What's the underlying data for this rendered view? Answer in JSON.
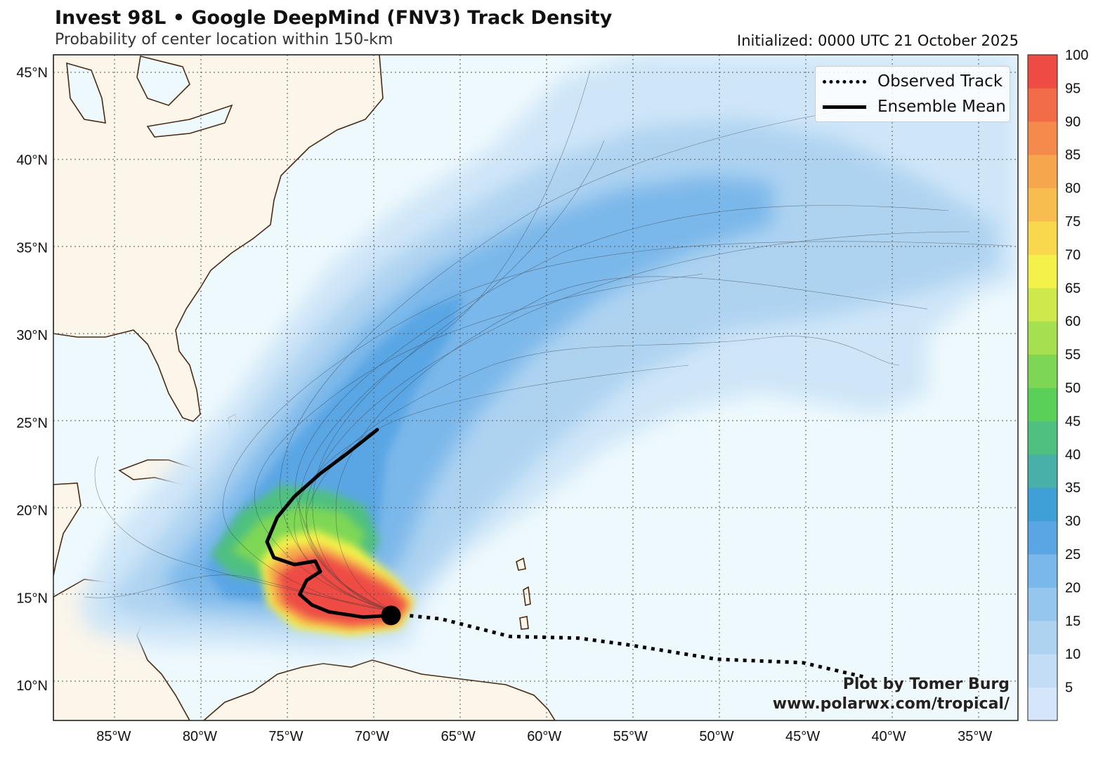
{
  "title": "Invest 98L • Google DeepMind (FNV3) Track Density",
  "subtitle": "Probability of center location within 150-km",
  "initialized": "Initialized: 0000 UTC 21 October 2025",
  "legend": {
    "observed": "Observed Track",
    "mean": "Ensemble Mean"
  },
  "credits": {
    "line1": "Plot by Tomer Burg",
    "line2": "www.polarwx.com/tropical/"
  },
  "map_extent": {
    "lon": [
      -88.5,
      -32.5
    ],
    "lat": [
      8,
      46
    ]
  },
  "lat_labels": [
    "45°N",
    "40°N",
    "35°N",
    "30°N",
    "25°N",
    "20°N",
    "15°N",
    "10°N"
  ],
  "lon_labels": [
    "85°W",
    "80°W",
    "75°W",
    "70°W",
    "65°W",
    "60°W",
    "55°W",
    "50°W",
    "45°W",
    "40°W",
    "35°W"
  ],
  "colorbar": {
    "labels": [
      "5",
      "10",
      "15",
      "20",
      "25",
      "30",
      "35",
      "40",
      "45",
      "50",
      "55",
      "60",
      "65",
      "70",
      "75",
      "80",
      "85",
      "90",
      "95",
      "100"
    ],
    "colors": [
      "#d6e6fa",
      "#c2ddf5",
      "#aed3f1",
      "#95c6ee",
      "#7ab7ea",
      "#5aa6e5",
      "#3fa0d8",
      "#48b0a8",
      "#4fc080",
      "#5bd059",
      "#7ed754",
      "#a6df50",
      "#cfe84b",
      "#f4f24a",
      "#f9d84d",
      "#f8bd4f",
      "#f6a64d",
      "#f48a4b",
      "#f16c47",
      "#ee4b44"
    ]
  },
  "tracks": {
    "ensemble_mean": [
      [
        -68.9,
        14.0
      ],
      [
        -70.5,
        13.9
      ],
      [
        -72.5,
        14.2
      ],
      [
        -73.5,
        14.6
      ],
      [
        -74.2,
        15.2
      ],
      [
        -73.8,
        16.0
      ],
      [
        -73.0,
        16.5
      ],
      [
        -73.3,
        17.1
      ],
      [
        -74.5,
        16.9
      ],
      [
        -75.7,
        17.3
      ],
      [
        -76.1,
        18.2
      ],
      [
        -75.5,
        19.6
      ],
      [
        -74.5,
        20.8
      ],
      [
        -73.0,
        22.1
      ],
      [
        -71.5,
        23.2
      ],
      [
        -69.7,
        24.6
      ]
    ],
    "observed": [
      [
        -41.5,
        10.5
      ],
      [
        -45.0,
        11.3
      ],
      [
        -50.0,
        11.5
      ],
      [
        -55.0,
        12.3
      ],
      [
        -58.0,
        12.7
      ],
      [
        -62.0,
        12.8
      ],
      [
        -66.0,
        13.8
      ],
      [
        -68.0,
        14.0
      ]
    ],
    "storm_position": [
      -68.9,
      14.0
    ]
  }
}
